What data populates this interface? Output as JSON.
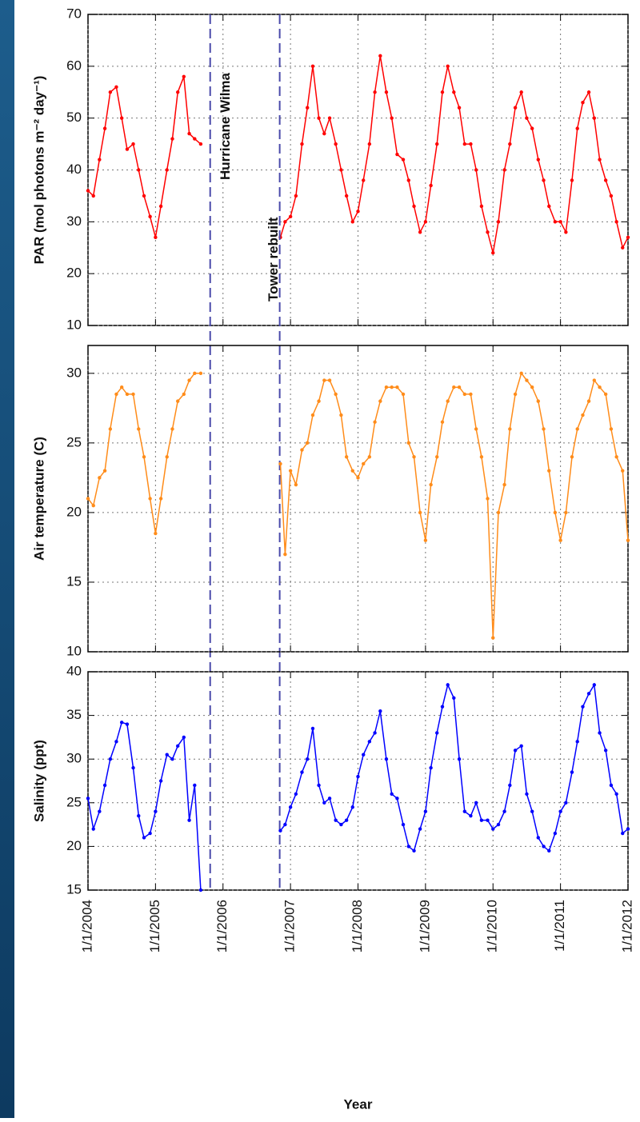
{
  "chart_data": [
    {
      "type": "line",
      "ylabel": "PAR (mol photons m⁻² day⁻¹)",
      "ylim": [
        10,
        70
      ],
      "yticks": [
        10,
        20,
        30,
        40,
        50,
        60,
        70
      ],
      "xlim": [
        2004,
        2012
      ],
      "grid": true,
      "x": [
        2004.0,
        2004.08,
        2004.17,
        2004.25,
        2004.33,
        2004.42,
        2004.5,
        2004.58,
        2004.67,
        2004.75,
        2004.83,
        2004.92,
        2005.0,
        2005.08,
        2005.17,
        2005.25,
        2005.33,
        2005.42,
        2005.5,
        2005.58,
        2005.67,
        2006.3,
        2006.85,
        2006.92,
        2007.0,
        2007.08,
        2007.17,
        2007.25,
        2007.33,
        2007.42,
        2007.5,
        2007.58,
        2007.67,
        2007.75,
        2007.83,
        2007.92,
        2008.0,
        2008.08,
        2008.17,
        2008.25,
        2008.33,
        2008.42,
        2008.5,
        2008.58,
        2008.67,
        2008.75,
        2008.83,
        2008.92,
        2009.0,
        2009.08,
        2009.17,
        2009.25,
        2009.33,
        2009.42,
        2009.5,
        2009.58,
        2009.67,
        2009.75,
        2009.83,
        2009.92,
        2010.0,
        2010.08,
        2010.17,
        2010.25,
        2010.33,
        2010.42,
        2010.5,
        2010.58,
        2010.67,
        2010.75,
        2010.83,
        2010.92,
        2011.0,
        2011.08,
        2011.17,
        2011.25,
        2011.33,
        2011.42,
        2011.5,
        2011.58,
        2011.67,
        2011.75,
        2011.83,
        2011.92,
        2012.0
      ],
      "series": [
        {
          "color": "#ff0000",
          "values": [
            36,
            35,
            42,
            48,
            55,
            56,
            50,
            44,
            45,
            40,
            35,
            31,
            27,
            33,
            40,
            46,
            55,
            58,
            47,
            46,
            45,
            null,
            27,
            30,
            31,
            35,
            45,
            52,
            60,
            50,
            47,
            50,
            45,
            40,
            35,
            30,
            32,
            38,
            45,
            55,
            62,
            55,
            50,
            43,
            42,
            38,
            33,
            28,
            30,
            37,
            45,
            55,
            60,
            55,
            52,
            45,
            45,
            40,
            33,
            28,
            24,
            30,
            40,
            45,
            52,
            55,
            50,
            48,
            42,
            38,
            33,
            30,
            30,
            28,
            38,
            48,
            53,
            55,
            50,
            42,
            38,
            35,
            30,
            25,
            27
          ]
        }
      ],
      "annotations": [
        {
          "x": 2005.81,
          "text": "Hurricane Wilma"
        },
        {
          "x": 2006.84,
          "text": "Tower rebuilt"
        }
      ]
    },
    {
      "type": "line",
      "ylabel": "Air temperature (C)",
      "ylim": [
        10,
        32
      ],
      "yticks": [
        10,
        15,
        20,
        25,
        30
      ],
      "xlim": [
        2004,
        2012
      ],
      "grid": true,
      "x": [
        2004.0,
        2004.08,
        2004.17,
        2004.25,
        2004.33,
        2004.42,
        2004.5,
        2004.58,
        2004.67,
        2004.75,
        2004.83,
        2004.92,
        2005.0,
        2005.08,
        2005.17,
        2005.25,
        2005.33,
        2005.42,
        2005.5,
        2005.58,
        2005.67,
        2006.3,
        2006.85,
        2006.92,
        2007.0,
        2007.08,
        2007.17,
        2007.25,
        2007.33,
        2007.42,
        2007.5,
        2007.58,
        2007.67,
        2007.75,
        2007.83,
        2007.92,
        2008.0,
        2008.08,
        2008.17,
        2008.25,
        2008.33,
        2008.42,
        2008.5,
        2008.58,
        2008.67,
        2008.75,
        2008.83,
        2008.92,
        2009.0,
        2009.08,
        2009.17,
        2009.25,
        2009.33,
        2009.42,
        2009.5,
        2009.58,
        2009.67,
        2009.75,
        2009.83,
        2009.92,
        2010.0,
        2010.08,
        2010.17,
        2010.25,
        2010.33,
        2010.42,
        2010.5,
        2010.58,
        2010.67,
        2010.75,
        2010.83,
        2010.92,
        2011.0,
        2011.08,
        2011.17,
        2011.25,
        2011.33,
        2011.42,
        2011.5,
        2011.58,
        2011.67,
        2011.75,
        2011.83,
        2011.92,
        2012.0
      ],
      "series": [
        {
          "color": "#ff8c1a",
          "values": [
            21,
            20.5,
            22.5,
            23,
            26,
            28.5,
            29,
            28.5,
            28.5,
            26,
            24,
            21,
            18.5,
            21,
            24,
            26,
            28,
            28.5,
            29.5,
            30,
            30,
            null,
            23.5,
            17,
            23,
            22,
            24.5,
            25,
            27,
            28,
            29.5,
            29.5,
            28.5,
            27,
            24,
            23,
            22.5,
            23.5,
            24,
            26.5,
            28,
            29,
            29,
            29,
            28.5,
            25,
            24,
            20,
            18,
            22,
            24,
            26.5,
            28,
            29,
            29,
            28.5,
            28.5,
            26,
            24,
            21,
            11,
            20,
            22,
            26,
            28.5,
            30,
            29.5,
            29,
            28,
            26,
            23,
            20,
            18,
            20,
            24,
            26,
            27,
            28,
            29.5,
            29,
            28.5,
            26,
            24,
            23,
            18
          ]
        }
      ]
    },
    {
      "type": "line",
      "ylabel": "Salinity (ppt)",
      "xlabel": "Year",
      "ylim": [
        15,
        40
      ],
      "yticks": [
        15,
        20,
        25,
        30,
        35,
        40
      ],
      "xlim": [
        2004,
        2012
      ],
      "grid": true,
      "xticks": [
        {
          "value": 2004,
          "label": "1/1/2004"
        },
        {
          "value": 2005,
          "label": "1/1/2005"
        },
        {
          "value": 2006,
          "label": "1/1/2006"
        },
        {
          "value": 2007,
          "label": "1/1/2007"
        },
        {
          "value": 2008,
          "label": "1/1/2008"
        },
        {
          "value": 2009,
          "label": "1/1/2009"
        },
        {
          "value": 2010,
          "label": "1/1/2010"
        },
        {
          "value": 2011,
          "label": "1/1/2011"
        },
        {
          "value": 2012,
          "label": "1/1/2012"
        }
      ],
      "x": [
        2004.0,
        2004.08,
        2004.17,
        2004.25,
        2004.33,
        2004.42,
        2004.5,
        2004.58,
        2004.67,
        2004.75,
        2004.83,
        2004.92,
        2005.0,
        2005.08,
        2005.17,
        2005.25,
        2005.33,
        2005.42,
        2005.5,
        2005.58,
        2005.67,
        2006.3,
        2006.85,
        2006.92,
        2007.0,
        2007.08,
        2007.17,
        2007.25,
        2007.33,
        2007.42,
        2007.5,
        2007.58,
        2007.67,
        2007.75,
        2007.83,
        2007.92,
        2008.0,
        2008.08,
        2008.17,
        2008.25,
        2008.33,
        2008.42,
        2008.5,
        2008.58,
        2008.67,
        2008.75,
        2008.83,
        2008.92,
        2009.0,
        2009.08,
        2009.17,
        2009.25,
        2009.33,
        2009.42,
        2009.5,
        2009.58,
        2009.67,
        2009.75,
        2009.83,
        2009.92,
        2010.0,
        2010.08,
        2010.17,
        2010.25,
        2010.33,
        2010.42,
        2010.5,
        2010.58,
        2010.67,
        2010.75,
        2010.83,
        2010.92,
        2011.0,
        2011.08,
        2011.17,
        2011.25,
        2011.33,
        2011.42,
        2011.5,
        2011.58,
        2011.67,
        2011.75,
        2011.83,
        2011.92,
        2012.0
      ],
      "series": [
        {
          "color": "#0000ff",
          "values": [
            25.5,
            22,
            24,
            27,
            30,
            32,
            34.2,
            34,
            29,
            23.5,
            21,
            21.5,
            24,
            27.5,
            30.5,
            30,
            31.5,
            32.5,
            23,
            27,
            15,
            null,
            21.8,
            22.5,
            24.5,
            26,
            28.5,
            30,
            33.5,
            27,
            25,
            25.5,
            23,
            22.5,
            23,
            24.5,
            28,
            30.5,
            32,
            33,
            35.5,
            30,
            26,
            25.5,
            22.5,
            20,
            19.5,
            22,
            24,
            29,
            33,
            36,
            38.5,
            37,
            30,
            24,
            23.5,
            25,
            23,
            23,
            22,
            22.5,
            24,
            27,
            31,
            31.5,
            26,
            24,
            21,
            20,
            19.5,
            21.5,
            24,
            25,
            28.5,
            32,
            36,
            37.5,
            38.5,
            33,
            31,
            27,
            26,
            21.5,
            22
          ]
        }
      ]
    }
  ]
}
